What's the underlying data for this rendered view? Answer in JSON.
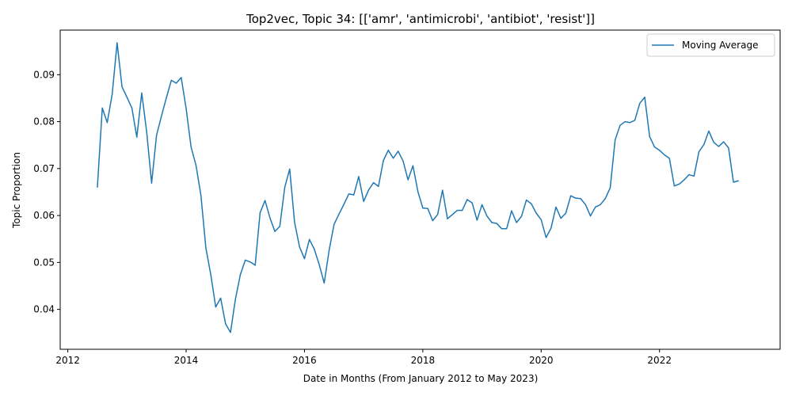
{
  "chart_data": {
    "type": "line",
    "title": "Top2vec, Topic 34: [['amr', 'antimicrobi', 'antibiot', 'resist']]",
    "xlabel": "Date in Months (From January 2012 to May 2023)",
    "ylabel": "Topic Proportion",
    "xlim": [
      "2011-11-15",
      "2024-01-15"
    ],
    "ylim": [
      0.0315,
      0.0995
    ],
    "x_ticks": [
      "2012",
      "2014",
      "2016",
      "2018",
      "2020",
      "2022"
    ],
    "y_ticks": [
      "0.04",
      "0.05",
      "0.06",
      "0.07",
      "0.08",
      "0.09"
    ],
    "grid": false,
    "legend_position": "top-right",
    "series": [
      {
        "name": "Moving Average",
        "color": "#1f77b4",
        "x": [
          "2012-07",
          "2012-08",
          "2012-09",
          "2012-10",
          "2012-11",
          "2012-12",
          "2013-01",
          "2013-02",
          "2013-03",
          "2013-04",
          "2013-05",
          "2013-06",
          "2013-07",
          "2013-08",
          "2013-09",
          "2013-10",
          "2013-11",
          "2013-12",
          "2014-01",
          "2014-02",
          "2014-03",
          "2014-04",
          "2014-05",
          "2014-06",
          "2014-07",
          "2014-08",
          "2014-09",
          "2014-10",
          "2014-11",
          "2014-12",
          "2015-01",
          "2015-02",
          "2015-03",
          "2015-04",
          "2015-05",
          "2015-06",
          "2015-07",
          "2015-08",
          "2015-09",
          "2015-10",
          "2015-11",
          "2015-12",
          "2016-01",
          "2016-02",
          "2016-03",
          "2016-04",
          "2016-05",
          "2016-06",
          "2016-07",
          "2016-08",
          "2016-09",
          "2016-10",
          "2016-11",
          "2016-12",
          "2017-01",
          "2017-02",
          "2017-03",
          "2017-04",
          "2017-05",
          "2017-06",
          "2017-07",
          "2017-08",
          "2017-09",
          "2017-10",
          "2017-11",
          "2017-12",
          "2018-01",
          "2018-02",
          "2018-03",
          "2018-04",
          "2018-05",
          "2018-06",
          "2018-07",
          "2018-08",
          "2018-09",
          "2018-10",
          "2018-11",
          "2018-12",
          "2019-01",
          "2019-02",
          "2019-03",
          "2019-04",
          "2019-05",
          "2019-06",
          "2019-07",
          "2019-08",
          "2019-09",
          "2019-10",
          "2019-11",
          "2019-12",
          "2020-01",
          "2020-02",
          "2020-03",
          "2020-04",
          "2020-05",
          "2020-06",
          "2020-07",
          "2020-08",
          "2020-09",
          "2020-10",
          "2020-11",
          "2020-12",
          "2021-01",
          "2021-02",
          "2021-03",
          "2021-04",
          "2021-05",
          "2021-06",
          "2021-07",
          "2021-08",
          "2021-09",
          "2021-10",
          "2021-11",
          "2021-12",
          "2022-01",
          "2022-02",
          "2022-03",
          "2022-04",
          "2022-05",
          "2022-06",
          "2022-07",
          "2022-08",
          "2022-09",
          "2022-10",
          "2022-11",
          "2022-12",
          "2023-01",
          "2023-02",
          "2023-03",
          "2023-04",
          "2023-05"
        ],
        "values": [
          0.066,
          0.0829,
          0.0798,
          0.0858,
          0.0968,
          0.0874,
          0.0852,
          0.0829,
          0.0767,
          0.0861,
          0.0778,
          0.0669,
          0.0771,
          0.0812,
          0.0851,
          0.0888,
          0.0882,
          0.0894,
          0.0828,
          0.0746,
          0.0707,
          0.0643,
          0.0531,
          0.0474,
          0.0405,
          0.0424,
          0.0369,
          0.0351,
          0.0422,
          0.0474,
          0.0505,
          0.0501,
          0.0494,
          0.0606,
          0.0632,
          0.0595,
          0.0566,
          0.0577,
          0.066,
          0.0699,
          0.0585,
          0.0533,
          0.0508,
          0.0549,
          0.0528,
          0.0495,
          0.0456,
          0.0526,
          0.0581,
          0.0603,
          0.0624,
          0.0646,
          0.0644,
          0.0683,
          0.063,
          0.0654,
          0.067,
          0.0662,
          0.0717,
          0.0739,
          0.0722,
          0.0737,
          0.0716,
          0.0676,
          0.0706,
          0.0651,
          0.0616,
          0.0615,
          0.0589,
          0.0602,
          0.0654,
          0.0593,
          0.0602,
          0.0611,
          0.0611,
          0.0634,
          0.0627,
          0.059,
          0.0623,
          0.0599,
          0.0585,
          0.0583,
          0.0572,
          0.0572,
          0.061,
          0.0585,
          0.0598,
          0.0633,
          0.0625,
          0.0605,
          0.0591,
          0.0553,
          0.0573,
          0.0618,
          0.0594,
          0.0605,
          0.0642,
          0.0637,
          0.0636,
          0.0623,
          0.0599,
          0.0618,
          0.0623,
          0.0636,
          0.0659,
          0.0761,
          0.0792,
          0.08,
          0.0798,
          0.0803,
          0.0839,
          0.0852,
          0.0768,
          0.0746,
          0.0739,
          0.0729,
          0.0722,
          0.0663,
          0.0667,
          0.0676,
          0.0687,
          0.0684,
          0.0736,
          0.0751,
          0.078,
          0.0756,
          0.0747,
          0.0757,
          0.0744,
          0.0671,
          0.0674
        ]
      }
    ]
  }
}
